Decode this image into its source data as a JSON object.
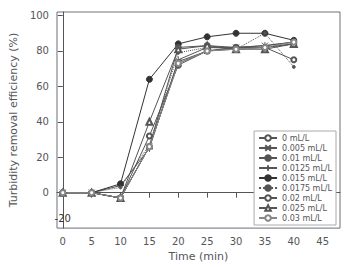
{
  "chart_data": {
    "type": "line",
    "x": [
      0,
      5,
      10,
      15,
      20,
      25,
      30,
      35,
      40
    ],
    "series": [
      {
        "name": "0 mL/L",
        "color": "#555555",
        "marker": "open_circle",
        "line_style": "solid",
        "values": [
          0,
          0,
          -3,
          32,
          72,
          80,
          82,
          82,
          75
        ]
      },
      {
        "name": "0.005 mL/L",
        "color": "#555555",
        "marker": "x",
        "line_style": "solid",
        "values": [
          0,
          0,
          -3,
          26,
          73,
          80,
          82,
          83,
          85
        ]
      },
      {
        "name": "0.01 mL/L",
        "color": "#555555",
        "marker": "none",
        "line_style": "solid",
        "values": [
          0,
          0,
          -3,
          26,
          74,
          80,
          81,
          82,
          84
        ]
      },
      {
        "name": "0.0125 mL/L",
        "color": "#555555",
        "marker": "plus",
        "line_style": "solid",
        "values": [
          0,
          0,
          4,
          25,
          75,
          82,
          82,
          83,
          85
        ]
      },
      {
        "name": "0.015 mL/L",
        "color": "#333333",
        "marker": "circle",
        "line_style": "solid",
        "values": [
          0,
          0,
          5,
          64,
          84,
          88,
          90,
          90,
          86
        ]
      },
      {
        "name": "0.0175 mL/L",
        "color": "#555555",
        "marker": "point",
        "line_style": "dotted",
        "values": [
          0,
          0,
          3,
          27,
          79,
          82,
          81,
          90,
          71
        ]
      },
      {
        "name": "0.02 mL/L",
        "color": "#555555",
        "marker": "open_circle",
        "line_style": "solid",
        "values": [
          0,
          0,
          -3,
          26,
          82,
          83,
          82,
          82,
          84
        ]
      },
      {
        "name": "0.025 mL/L",
        "color": "#555555",
        "marker": "open_triangle",
        "line_style": "solid",
        "values": [
          0,
          0,
          -3,
          40,
          81,
          83,
          81,
          81,
          84
        ]
      },
      {
        "name": "0.03 mL/L",
        "color": "#888888",
        "marker": "open_circle",
        "line_style": "solid",
        "values": [
          0,
          0,
          -3,
          26,
          73,
          80,
          81,
          82,
          85
        ]
      }
    ],
    "xlabel": "Time (min)",
    "ylabel": "Turbidity removal efficiency (%)",
    "xlim": [
      -1,
      48
    ],
    "ylim": [
      -20,
      102
    ],
    "xticks": [
      0,
      5,
      10,
      15,
      20,
      25,
      30,
      35,
      40,
      45
    ],
    "yticks": [
      0,
      20,
      40,
      60,
      80,
      100
    ],
    "grid": false,
    "legend": "lower right",
    "annotations": [
      {
        "text": "-20",
        "x": 0,
        "y": -20
      }
    ]
  }
}
